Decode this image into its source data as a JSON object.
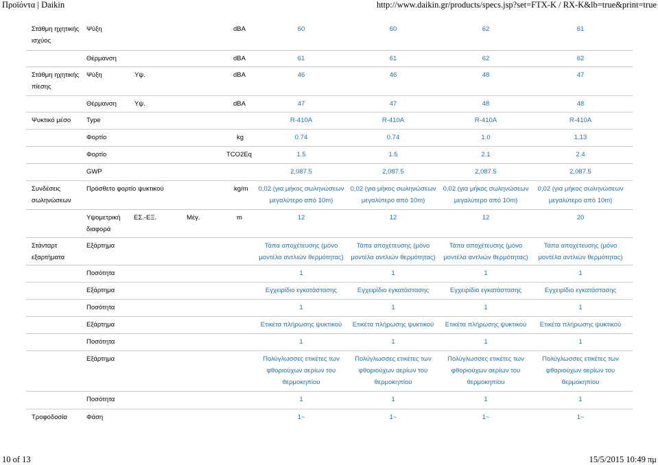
{
  "header": {
    "left": "Προϊόντα | Daikin",
    "right": "http://www.daikin.gr/products/specs.jsp?set=FTX-K / RX-K&lb=true&print=true"
  },
  "footer": {
    "page": "10 of 13",
    "datetime": "15/5/2015 10:49 πμ"
  },
  "rows": [
    {
      "label": "Στάθμη ηχητικής ισχύος",
      "sub": "Ψύξη",
      "sub2": "",
      "unit": "dBA",
      "values": [
        "60",
        "60",
        "62",
        "61"
      ]
    },
    {
      "label": "",
      "sub": "Θέρμανση",
      "sub2": "",
      "unit": "dBA",
      "values": [
        "61",
        "61",
        "62",
        "62"
      ]
    },
    {
      "label": "Στάθμη ηχητικής πίεσης",
      "sub": "Ψύξη",
      "sub2": "Υψ.",
      "unit": "dBA",
      "values": [
        "46",
        "46",
        "48",
        "47"
      ]
    },
    {
      "label": "",
      "sub": "Θέρμανση",
      "sub2": "Υψ.",
      "unit": "dBA",
      "values": [
        "47",
        "47",
        "48",
        "48"
      ]
    },
    {
      "label": "Ψυκτικό μέσο",
      "sub": "Type",
      "sub2": "",
      "unit": "",
      "values": [
        "R-410A",
        "R-410A",
        "R-410A",
        "R-410A"
      ]
    },
    {
      "label": "",
      "sub": "Φορτίο",
      "sub2": "",
      "unit": "kg",
      "values": [
        "0.74",
        "0.74",
        "1.0",
        "1.13"
      ]
    },
    {
      "label": "",
      "sub": "Φορτίο",
      "sub2": "",
      "unit": "TCO2Eq",
      "values": [
        "1.5",
        "1.5",
        "2.1",
        "2.4"
      ]
    },
    {
      "label": "",
      "sub": "GWP",
      "sub2": "",
      "unit": "",
      "values": [
        "2,087.5",
        "2,087.5",
        "2,087.5",
        "2,087.5"
      ]
    },
    {
      "label": "Συνδέσεις σωληνώσεων",
      "sub": "Πρόσθετο φορτίο ψυκτικού",
      "sub2": "",
      "unit": "kg/m",
      "values": [
        "0,02 (για μήκος σωληνώσεων μεγαλύτερο από 10m)",
        "0,02 (για μήκος σωληνώσεων μεγαλύτερο από 10m)",
        "0,02 (για μήκος σωληνώσεων μεγαλύτερο από 10m)",
        "0,02 (για μήκος σωληνώσεων μεγαλύτερο από 10m)"
      ]
    },
    {
      "label": "",
      "sub": "Υψομετρική διαφορά",
      "sub2": "ΕΣ.-ΕΞ.",
      "sub3": "Μέγ.",
      "unit": "m",
      "values": [
        "12",
        "12",
        "12",
        "20"
      ]
    },
    {
      "label": "Στάνταρτ εξαρτήματα",
      "sub": "Εξάρτημα",
      "sub2": "",
      "unit": "",
      "values": [
        "Τάπα αποχέτευσης (μόνο μοντέλα αντλιών θερμότητας)",
        "Τάπα αποχέτευσης (μόνο μοντέλα αντλιών θερμότητας)",
        "Τάπα αποχέτευσης (μόνο μοντέλα αντλιών θερμότητας)",
        "Τάπα αποχέτευσης (μόνο μοντέλα αντλιών θερμότητας)"
      ]
    },
    {
      "label": "",
      "sub": "Ποσότητα",
      "sub2": "",
      "unit": "",
      "values": [
        "1",
        "1",
        "1",
        "1"
      ]
    },
    {
      "label": "",
      "sub": "Εξάρτημα",
      "sub2": "",
      "unit": "",
      "values": [
        "Εγχειρίδιο εγκατάστασης",
        "Εγχειρίδιο εγκατάστασης",
        "Εγχειρίδιο εγκατάστασης",
        "Εγχειρίδιο εγκατάστασης"
      ]
    },
    {
      "label": "",
      "sub": "Ποσότητα",
      "sub2": "",
      "unit": "",
      "values": [
        "1",
        "1",
        "1",
        "1"
      ]
    },
    {
      "label": "",
      "sub": "Εξάρτημα",
      "sub2": "",
      "unit": "",
      "values": [
        "Ετικέτα πλήρωσης ψυκτικού",
        "Ετικέτα πλήρωσης ψυκτικού",
        "Ετικέτα πλήρωσης ψυκτικού",
        "Ετικέτα πλήρωσης ψυκτικού"
      ]
    },
    {
      "label": "",
      "sub": "Ποσότητα",
      "sub2": "",
      "unit": "",
      "values": [
        "1",
        "1",
        "1",
        "1"
      ]
    },
    {
      "label": "",
      "sub": "Εξάρτημα",
      "sub2": "",
      "unit": "",
      "values": [
        "Πολύγλωσσες ετικέτες των φθοριούχων αερίων του θερμοκηπίου",
        "Πολύγλωσσες ετικέτες των φθοριούχων αερίων του θερμοκηπίου",
        "Πολύγλωσσες ετικέτες των φθοριούχων αερίων του θερμοκηπίου",
        "Πολύγλωσσες ετικέτες των φθοριούχων αερίων του θερμοκηπίου"
      ]
    },
    {
      "label": "",
      "sub": "Ποσότητα",
      "sub2": "",
      "unit": "",
      "values": [
        "1",
        "1",
        "1",
        "1"
      ]
    },
    {
      "label": "Τροφοδοσία",
      "sub": "Φάση",
      "sub2": "",
      "unit": "",
      "values": [
        "1~",
        "1~",
        "1~",
        "1~"
      ]
    }
  ]
}
